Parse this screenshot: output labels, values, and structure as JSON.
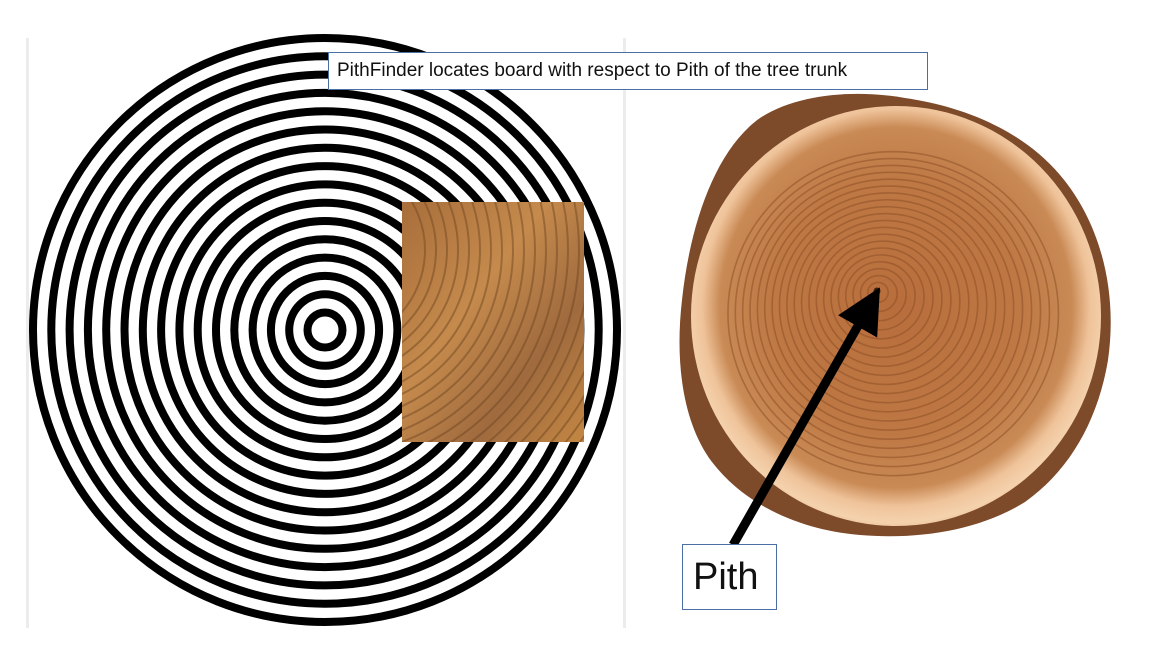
{
  "title_callout": "PithFinder locates board with respect to Pith of the tree trunk",
  "pith_label": "Pith",
  "colors": {
    "ring_black": "#000000",
    "callout_border": "#4a6fa5",
    "sapwood": "#e9b98e",
    "heartwood": "#b9713f",
    "bark": "#7d4a2a",
    "board": "#b8793c"
  }
}
